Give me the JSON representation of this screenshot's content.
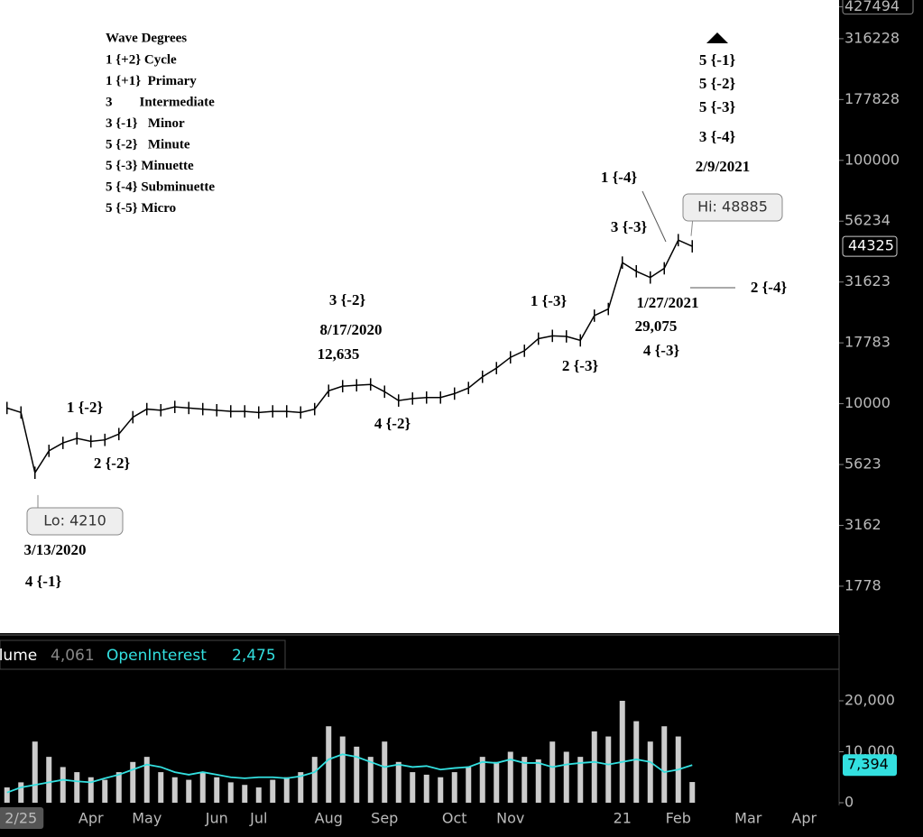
{
  "chart_data": [
    {
      "type": "line",
      "log_scale": true,
      "color": "#000000",
      "categories": [
        null,
        "2/25",
        null,
        null,
        null,
        null,
        "Apr",
        null,
        null,
        null,
        "May",
        null,
        null,
        null,
        null,
        "Jun",
        null,
        null,
        "Jul",
        null,
        null,
        null,
        null,
        "Aug",
        null,
        null,
        null,
        "Sep",
        null,
        null,
        null,
        null,
        "Oct",
        null,
        null,
        null,
        "Nov",
        null,
        null,
        null,
        null,
        null,
        null,
        null,
        "21",
        null,
        null,
        null,
        "Feb",
        null,
        null,
        null,
        null,
        "Mar",
        null,
        null,
        null,
        "Apr",
        null,
        null
      ],
      "values": [
        9600,
        9200,
        5200,
        6400,
        6900,
        7200,
        7000,
        7100,
        7500,
        8800,
        9500,
        9400,
        9700,
        9600,
        9500,
        9400,
        9300,
        9300,
        9200,
        9300,
        9300,
        9200,
        9500,
        11300,
        11800,
        11900,
        12000,
        11200,
        10300,
        10500,
        10600,
        10600,
        11000,
        11600,
        12900,
        14000,
        15500,
        16500,
        18500,
        19000,
        18900,
        18200,
        23000,
        24500,
        38000,
        35000,
        33000,
        36000,
        47000,
        44325,
        null,
        null,
        null,
        null,
        null,
        null,
        null,
        null,
        null,
        null
      ],
      "ylim": [
        1140,
        456000
      ],
      "yticks": [
        1778,
        3162,
        5623,
        10000,
        17783,
        31623,
        56234,
        100000,
        177828,
        316228,
        427494
      ],
      "legend_title": "Wave Degrees",
      "legend": [
        "1 {+2} Cycle",
        "1 {+1}  Primary",
        "3        Intermediate",
        "3 {-1}   Minor",
        "5 {-2}   Minute",
        "5 {-3} Minuette",
        "5 {-4} Subminuette",
        "5 {-5} Micro"
      ],
      "annotations": [
        "5 {-1}",
        "5 {-2}",
        "5 {-3}",
        "3 {-4}",
        "2/9/2021",
        "1 {-4}",
        "3 {-3}",
        "2 {-4}",
        "1/27/2021",
        "29,075",
        "4 {-3}",
        "1 {-3}",
        "2 {-3}",
        "3 {-2}",
        "8/17/2020",
        "12,635",
        "4 {-2}",
        "1 {-2}",
        "2 {-2}",
        "3/13/2020",
        "4 {-1}"
      ],
      "high": {
        "value": 48885,
        "label": "Hi: 48885"
      },
      "low": {
        "value": 4210,
        "label": "Lo: 4210"
      }
    },
    {
      "type": "bar-line",
      "series": [
        {
          "name": "Volume",
          "color": "#ffffff",
          "values": [
            3000,
            4000,
            12000,
            9000,
            7000,
            6000,
            5000,
            4500,
            6000,
            8000,
            9000,
            6000,
            5000,
            4500,
            6000,
            5000,
            4000,
            3500,
            3000,
            4500,
            5000,
            6000,
            9000,
            15000,
            13000,
            11000,
            9000,
            12000,
            8000,
            6000,
            5500,
            5000,
            6000,
            7000,
            9000,
            8000,
            10000,
            9000,
            8500,
            12000,
            10000,
            9000,
            14000,
            13000,
            20000,
            16000,
            12000,
            15000,
            13000,
            4061,
            null,
            null,
            null,
            null,
            null,
            null,
            null,
            null,
            null,
            null
          ]
        },
        {
          "name": "OpenInterest",
          "color": "#33e0e0",
          "values": [
            2000,
            3000,
            3500,
            4000,
            4500,
            4200,
            4000,
            4800,
            5500,
            6500,
            7500,
            7000,
            6000,
            5500,
            6000,
            5500,
            5000,
            4800,
            5000,
            5000,
            4800,
            5200,
            6000,
            8500,
            9500,
            9000,
            8000,
            7000,
            7500,
            7000,
            7200,
            6500,
            6800,
            7000,
            8000,
            7800,
            8500,
            7800,
            7800,
            7000,
            7500,
            7800,
            8000,
            7500,
            8000,
            8500,
            8000,
            6000,
            6500,
            7394,
            null,
            null,
            null,
            null,
            null,
            null,
            null,
            null,
            null,
            null
          ]
        }
      ],
      "header": [
        {
          "value": 4061,
          "label": "4,061"
        },
        {
          "value": 2475,
          "label": "2,475"
        }
      ],
      "ylim": [
        0,
        25660
      ],
      "yticks": [
        0,
        {
          "value": 10000,
          "label": "10,000"
        },
        {
          "value": 20000,
          "label": "20,000"
        }
      ],
      "last_label": {
        "value": 7394,
        "label": "7,394"
      }
    }
  ]
}
